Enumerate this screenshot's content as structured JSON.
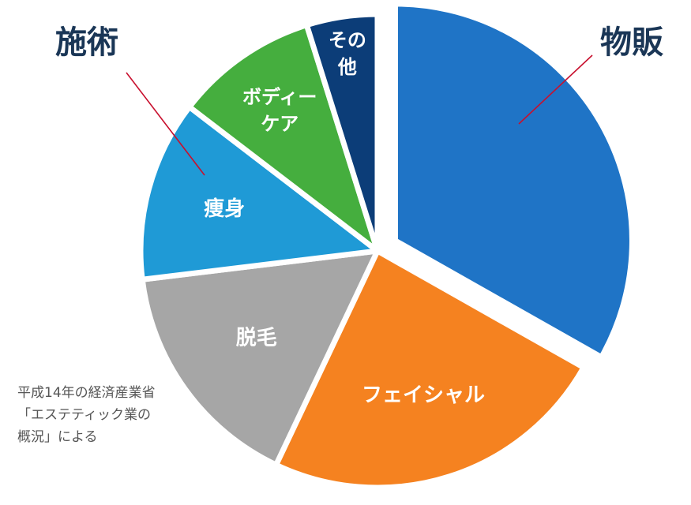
{
  "chart_data": {
    "type": "pie",
    "categories": [
      "物販",
      "フェイシャル",
      "脱毛",
      "痩身",
      "ボディーケア",
      "その他"
    ],
    "values": [
      32.3,
      23.2,
      15.6,
      12.0,
      9.5,
      4.7
    ],
    "colors": [
      "#1f74c6",
      "#f58220",
      "#a6a6a6",
      "#1f9ad6",
      "#45ae3e",
      "#0c3d78"
    ],
    "slice_labels": [
      [
        "物販"
      ],
      [
        "フェイシャル"
      ],
      [
        "脱毛"
      ],
      [
        "痩身"
      ],
      [
        "ボディー",
        "ケア"
      ],
      [
        "その",
        "他"
      ]
    ],
    "exploded": [
      true,
      false,
      false,
      false,
      false,
      false
    ],
    "group_labels": [
      {
        "text": "物販",
        "color": "#1a3656"
      },
      {
        "text": "施術",
        "color": "#1a3656"
      }
    ],
    "annotation_line_color": "#c8102e"
  },
  "note": {
    "lines": [
      "平成14年の経済産業省",
      "「エステティック業の",
      "概況」による"
    ]
  }
}
